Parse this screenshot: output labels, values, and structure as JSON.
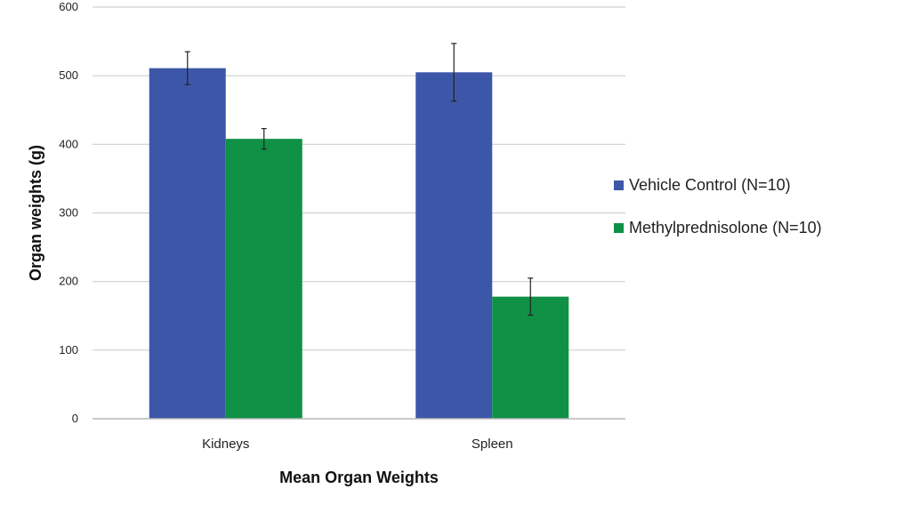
{
  "chart_data": {
    "type": "bar",
    "title": "",
    "xlabel": "Mean Organ Weights",
    "ylabel": "Organ weights (g)",
    "categories": [
      "Kidneys",
      "Spleen"
    ],
    "ylim": [
      0,
      600
    ],
    "yticks": [
      0,
      100,
      200,
      300,
      400,
      500,
      600
    ],
    "grid": true,
    "legend_position": "right",
    "series": [
      {
        "name": "Vehicle Control (N=10)",
        "color": "#3d57a8",
        "values": [
          511,
          505
        ],
        "errors": [
          24,
          42
        ]
      },
      {
        "name": "Methylprednisolone (N=10)",
        "color": "#0f9146",
        "values": [
          408,
          178
        ],
        "errors": [
          15,
          27
        ]
      }
    ]
  }
}
